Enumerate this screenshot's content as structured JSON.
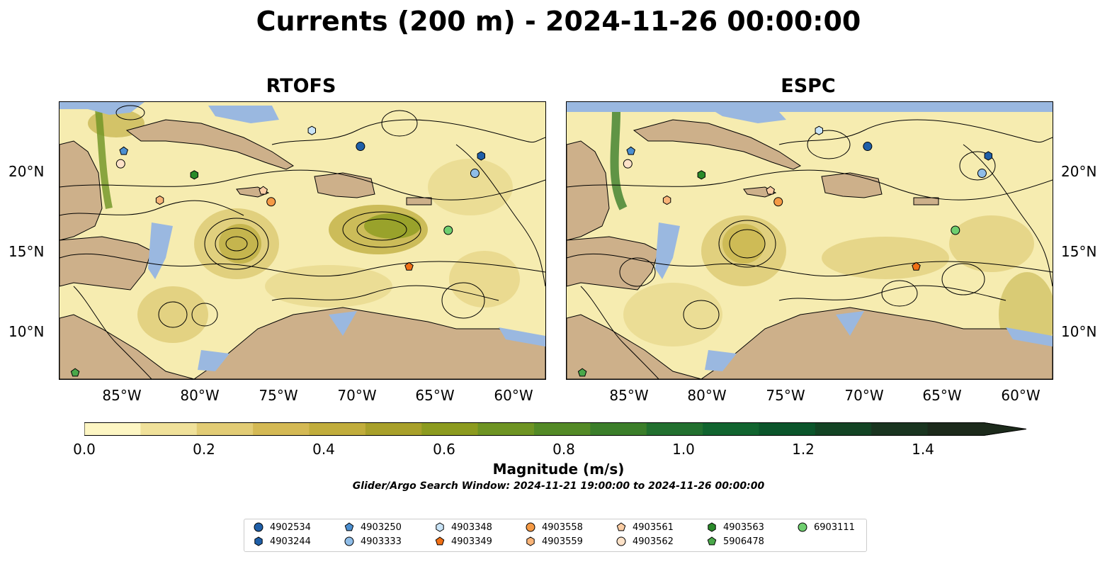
{
  "title": "Currents (200 m) - 2024-11-26 00:00:00",
  "panels": [
    {
      "title": "RTOFS"
    },
    {
      "title": "ESPC"
    }
  ],
  "lat_labels": [
    "20°N",
    "15°N",
    "10°N"
  ],
  "lon_labels": [
    "85°W",
    "80°W",
    "75°W",
    "70°W",
    "65°W",
    "60°W"
  ],
  "colorbar": {
    "label": "Magnitude (m/s)",
    "ticks": [
      "0.0",
      "0.2",
      "0.4",
      "0.6",
      "0.8",
      "1.0",
      "1.2",
      "1.4"
    ],
    "min": 0.0,
    "max": 1.5,
    "extend": "max",
    "colors": [
      "#fdf6c3",
      "#f0e19a",
      "#e2cc75",
      "#d4b954",
      "#c1ad3c",
      "#a8a02a",
      "#8c9b1f",
      "#6e9423",
      "#538a26",
      "#3b7e2a",
      "#22702f",
      "#11642f",
      "#0b552b",
      "#134424",
      "#1a3520",
      "#1c2a1b"
    ]
  },
  "search_window": "Glider/Argo Search Window: 2024-11-21 19:00:00 to 2024-11-26 00:00:00",
  "legend": [
    {
      "id": "4902534",
      "marker": "circle",
      "color": "#1f5fa8"
    },
    {
      "id": "4903244",
      "marker": "hexagon",
      "color": "#1f5fa8"
    },
    {
      "id": "4903250",
      "marker": "pentagon",
      "color": "#4c8fd0"
    },
    {
      "id": "4903333",
      "marker": "circle",
      "color": "#8fbde8"
    },
    {
      "id": "4903348",
      "marker": "hexagon",
      "color": "#c9e4f7"
    },
    {
      "id": "4903349",
      "marker": "pentagon",
      "color": "#f07016"
    },
    {
      "id": "4903558",
      "marker": "circle",
      "color": "#f59a45"
    },
    {
      "id": "4903559",
      "marker": "hexagon",
      "color": "#f9b478"
    },
    {
      "id": "4903561",
      "marker": "pentagon",
      "color": "#fbcda4"
    },
    {
      "id": "4903562",
      "marker": "circle",
      "color": "#fde2c8"
    },
    {
      "id": "4903563",
      "marker": "hexagon",
      "color": "#2a8a2a"
    },
    {
      "id": "5906478",
      "marker": "pentagon",
      "color": "#4aa84a"
    },
    {
      "id": "6903111",
      "marker": "circle",
      "color": "#6fcf6f"
    }
  ],
  "map_extent": {
    "lon": [
      -89.0,
      -58.0
    ],
    "lat": [
      7.0,
      24.5
    ]
  },
  "float_positions": {
    "4902534": [
      -69.8,
      21.7
    ],
    "4903244": [
      -62.1,
      21.1
    ],
    "4903250": [
      -84.9,
      21.4
    ],
    "4903333": [
      -62.5,
      20.0
    ],
    "4903348": [
      -72.9,
      22.7
    ],
    "4903349": [
      -66.7,
      14.1
    ],
    "4903558": [
      -75.5,
      18.2
    ],
    "4903559": [
      -82.6,
      18.3
    ],
    "4903561": [
      -76.0,
      18.9
    ],
    "4903562": [
      -85.1,
      20.6
    ],
    "4903563": [
      -80.4,
      19.9
    ],
    "5906478": [
      -88.0,
      7.4
    ],
    "6903111": [
      -64.2,
      16.4
    ]
  }
}
